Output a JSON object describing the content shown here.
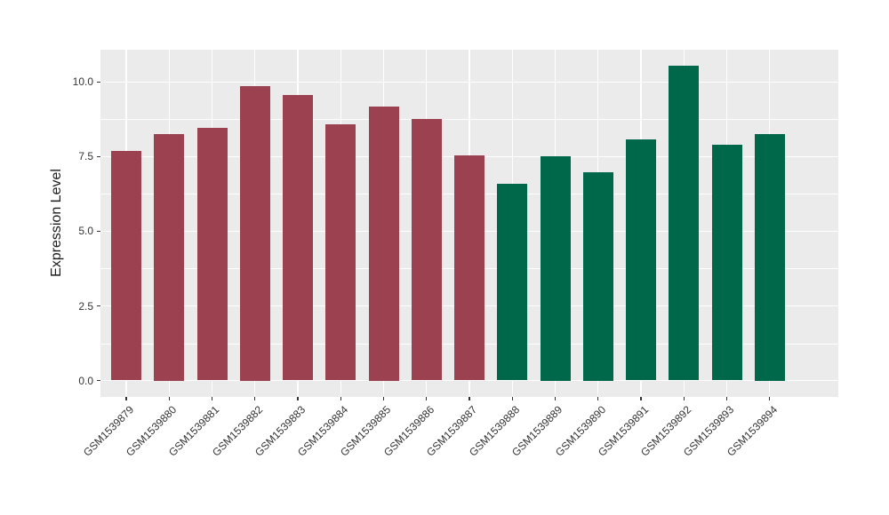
{
  "chart_data": {
    "type": "bar",
    "title": "",
    "xlabel": "",
    "ylabel": "Expression Level",
    "categories": [
      "GSM1539879",
      "GSM1539880",
      "GSM1539881",
      "GSM1539882",
      "GSM1539883",
      "GSM1539884",
      "GSM1539885",
      "GSM1539886",
      "GSM1539887",
      "GSM1539888",
      "GSM1539889",
      "GSM1539890",
      "GSM1539891",
      "GSM1539892",
      "GSM1539893",
      "GSM1539894"
    ],
    "values": [
      7.68,
      8.27,
      8.45,
      9.86,
      9.56,
      8.59,
      9.19,
      8.77,
      7.55,
      6.58,
      7.51,
      6.99,
      8.08,
      10.55,
      7.91,
      8.27
    ],
    "bar_groups": [
      1,
      1,
      1,
      1,
      1,
      1,
      1,
      1,
      1,
      2,
      2,
      2,
      2,
      2,
      2,
      2
    ],
    "group_colors": [
      "#9B4150",
      "#00684A"
    ],
    "y_tick_labels": [
      "0.0",
      "2.5",
      "5.0",
      "7.5",
      "10.0"
    ],
    "y_tick_values": [
      0,
      2.5,
      5,
      7.5,
      10
    ],
    "ylim": [
      -0.55,
      11.08
    ],
    "bar_width_ratio": 0.7,
    "legend": "none",
    "grid": "horizontal major+minor, vertical major at category centers",
    "panel_bg": "#EBEBEB",
    "grid_color": "#FFFFFF"
  }
}
